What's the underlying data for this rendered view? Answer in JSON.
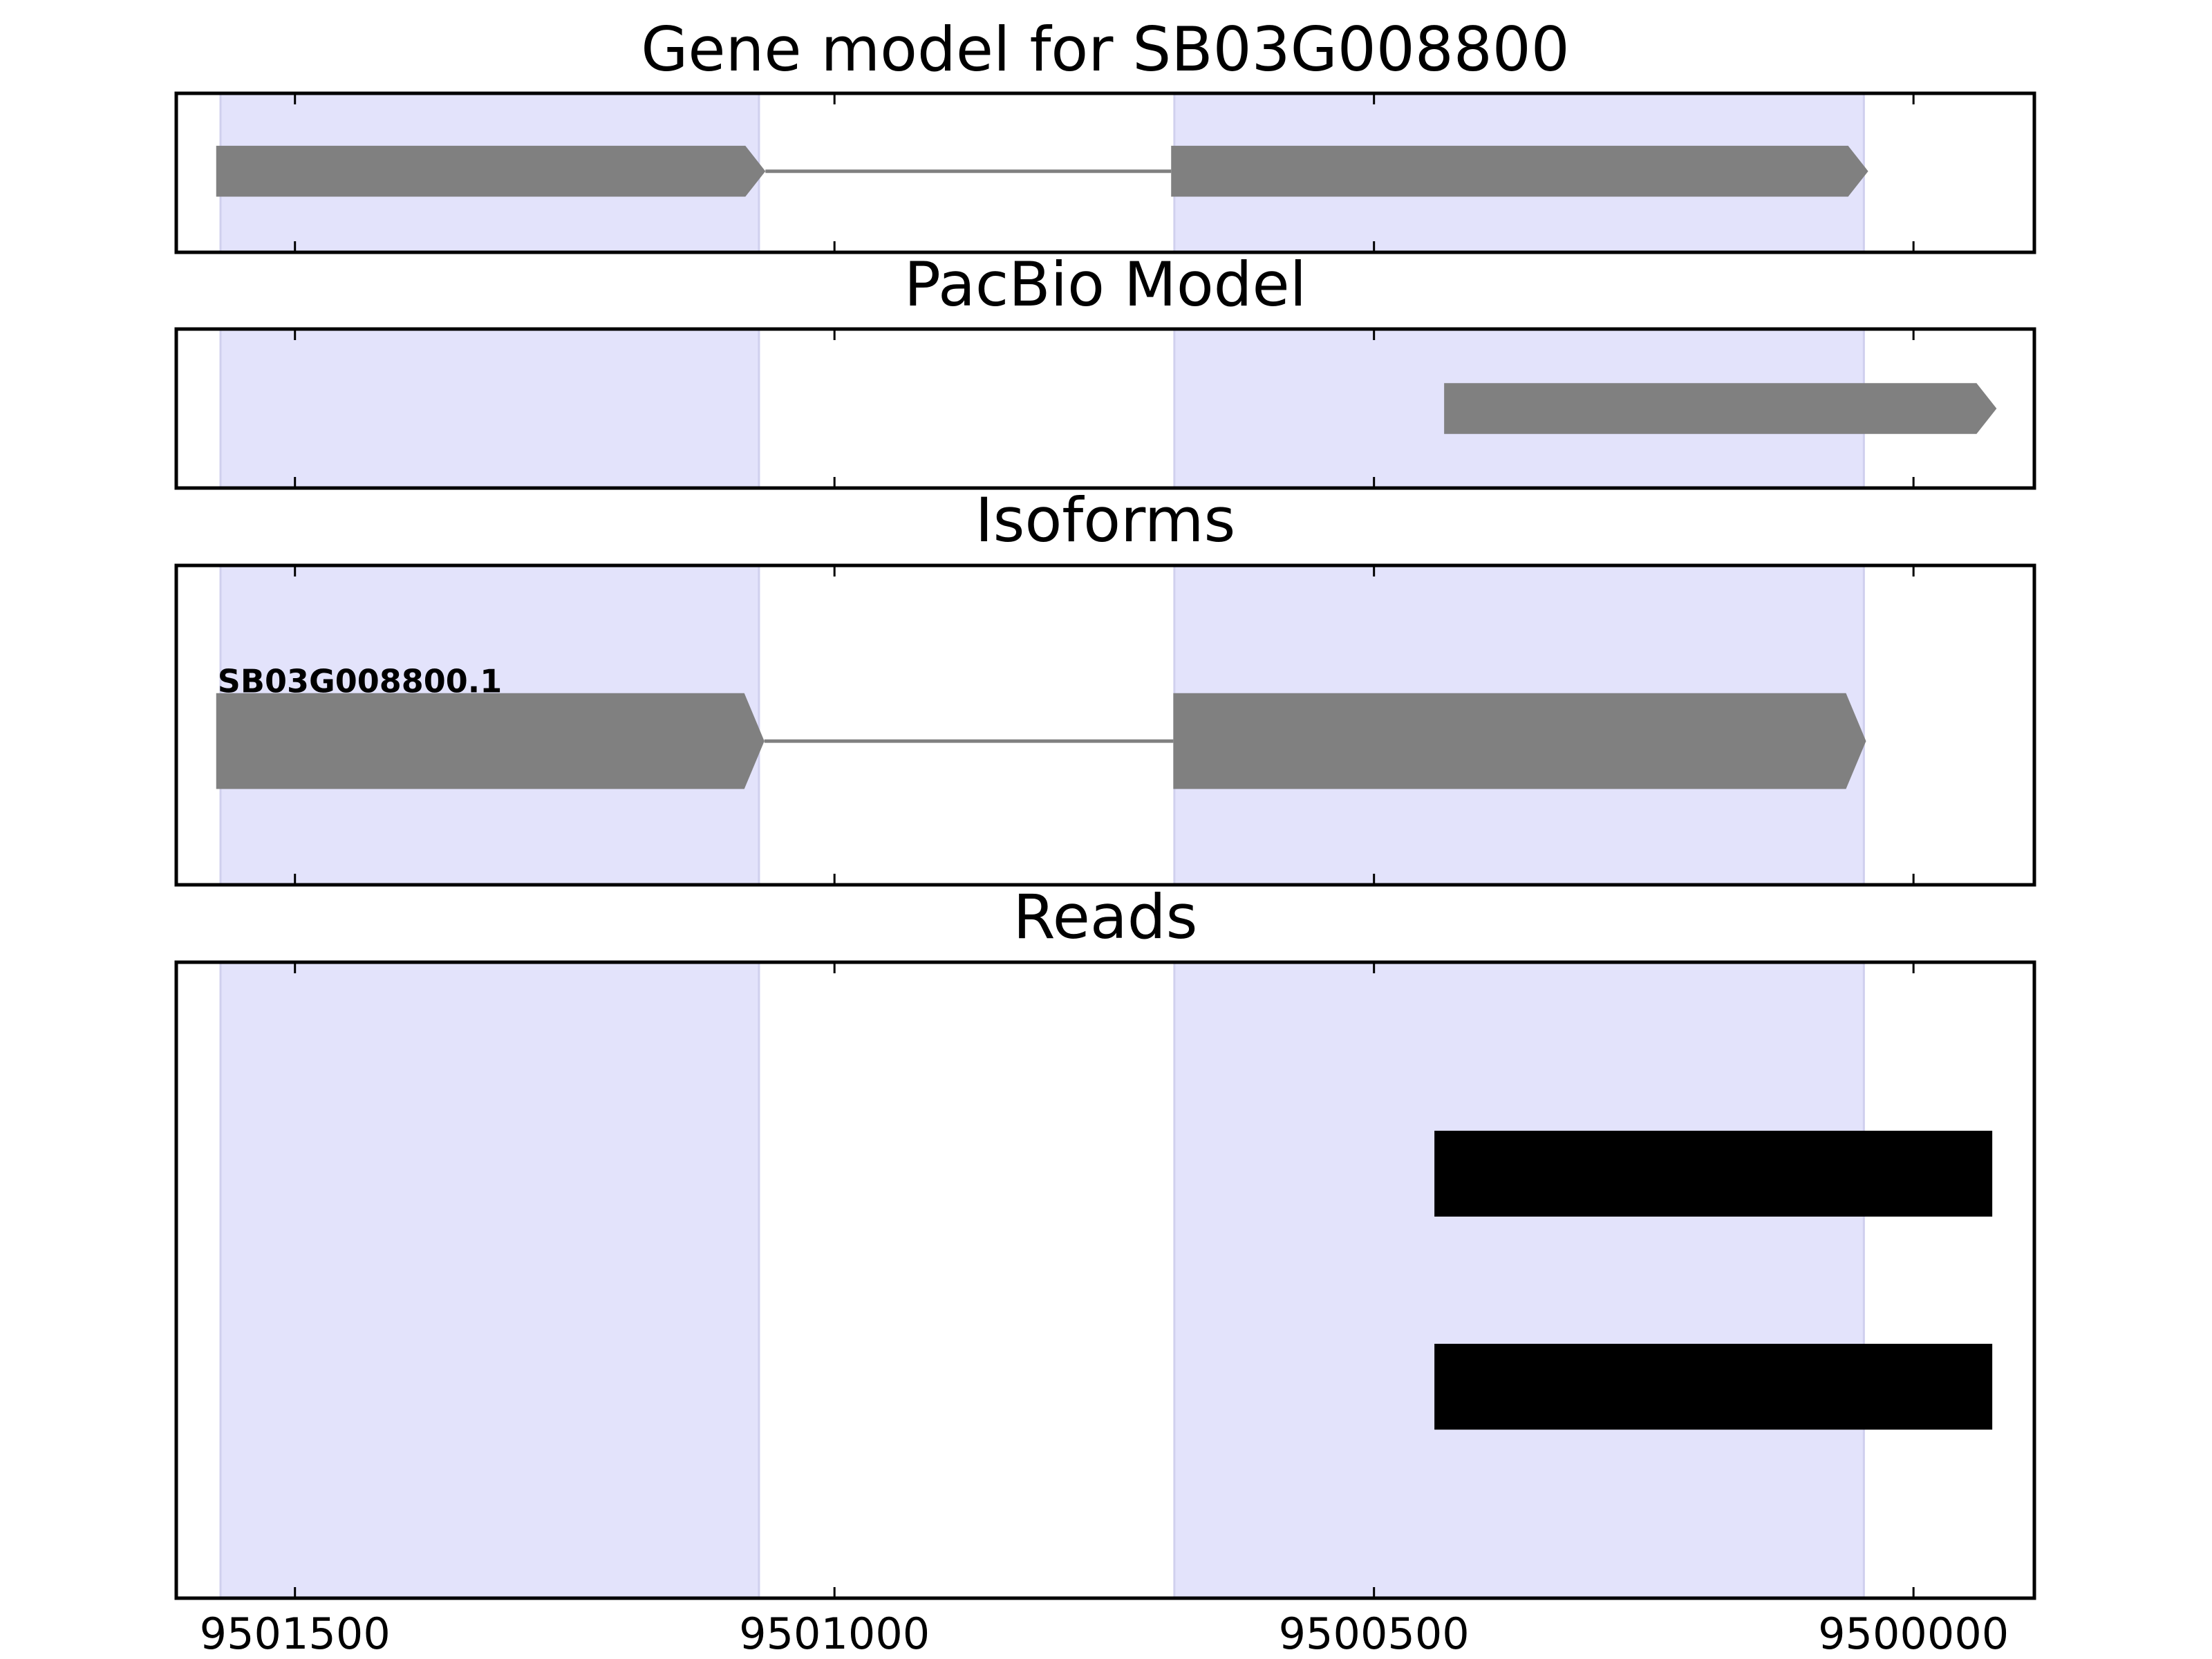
{
  "chart_data": [
    {
      "type": "gene-track",
      "title": "Gene model for SB03G008800",
      "xlim": [
        9501610,
        9499888
      ],
      "xticks": [
        9501500,
        9501000,
        9500500,
        9500000
      ],
      "show_tick_labels": false,
      "shaded": [
        {
          "start": 9501569,
          "end": 9501070
        },
        {
          "start": 9500685,
          "end": 9500046
        }
      ],
      "shade_color": "#e3e3fb",
      "features": [
        {
          "start": 9501573,
          "end": 9501064
        },
        {
          "start": 9500688,
          "end": 9500042
        }
      ],
      "color": "#808080"
    },
    {
      "type": "gene-track",
      "title": "PacBio Model",
      "xlim": [
        9501610,
        9499888
      ],
      "xticks": [
        9501500,
        9501000,
        9500500,
        9500000
      ],
      "show_tick_labels": false,
      "shaded": [
        {
          "start": 9501569,
          "end": 9501070
        },
        {
          "start": 9500685,
          "end": 9500046
        }
      ],
      "shade_color": "#e3e3fb",
      "features": [
        {
          "start": 9500435,
          "end": 9499923
        }
      ],
      "color": "#808080"
    },
    {
      "type": "gene-track",
      "title": "Isoforms",
      "label": "SB03G008800.1",
      "xlim": [
        9501610,
        9499888
      ],
      "xticks": [
        9501500,
        9501000,
        9500500,
        9500000
      ],
      "show_tick_labels": false,
      "shaded": [
        {
          "start": 9501569,
          "end": 9501070
        },
        {
          "start": 9500685,
          "end": 9500046
        }
      ],
      "shade_color": "#e3e3fb",
      "features": [
        {
          "start": 9501573,
          "end": 9501065
        },
        {
          "start": 9500686,
          "end": 9500044
        }
      ],
      "color": "#808080"
    },
    {
      "type": "reads",
      "title": "Reads",
      "xlim": [
        9501610,
        9499888
      ],
      "xticks": [
        9501500,
        9501000,
        9500500,
        9500000
      ],
      "show_tick_labels": true,
      "shaded": [
        {
          "start": 9501569,
          "end": 9501070
        },
        {
          "start": 9500685,
          "end": 9500046
        }
      ],
      "shade_color": "#e3e3fb",
      "features": [
        {
          "start": 9500444,
          "end": 9499927
        },
        {
          "start": 9500444,
          "end": 9499927
        }
      ],
      "color": "#000000"
    }
  ]
}
